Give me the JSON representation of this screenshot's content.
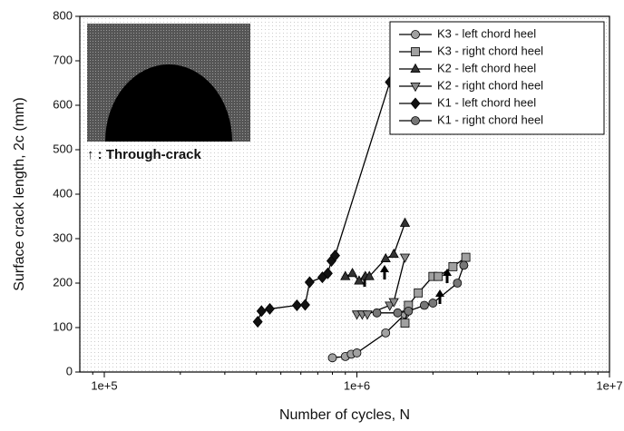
{
  "chart_data": {
    "type": "line",
    "xlabel": "Number of cycles, N",
    "ylabel": "Surface crack length, 2c (mm)",
    "annotation": "↑ : Through-crack",
    "xscale": "log",
    "xlim": [
      80000,
      10000000
    ],
    "ylim": [
      0,
      800
    ],
    "xticks": [
      {
        "value": 100000,
        "label": "1e+5"
      },
      {
        "value": 1000000,
        "label": "1e+6"
      },
      {
        "value": 10000000,
        "label": "1e+7"
      }
    ],
    "yticks": [
      0,
      100,
      200,
      300,
      400,
      500,
      600,
      700,
      800
    ],
    "legend": "upper right",
    "series": [
      {
        "name": "K3 - left chord heel",
        "color": "#a0a0a0",
        "marker": "circle",
        "x": [
          800000,
          900000,
          950000,
          1000000,
          1300000,
          1550000
        ],
        "values": [
          32,
          35,
          40,
          43,
          88,
          130
        ]
      },
      {
        "name": "K3 - right chord heel",
        "color": "#a0a0a0",
        "marker": "square",
        "x": [
          1550000,
          1600000,
          1750000,
          2000000,
          2100000,
          2400000,
          2700000
        ],
        "values": [
          110,
          150,
          178,
          215,
          215,
          237,
          258
        ]
      },
      {
        "name": "K2 - left chord heel",
        "color": "#333333",
        "marker": "triangle-up",
        "x": [
          900000,
          960000,
          1020000,
          1080000,
          1120000,
          1300000,
          1400000,
          1550000
        ],
        "values": [
          215,
          222,
          205,
          215,
          215,
          255,
          265,
          335
        ]
      },
      {
        "name": "K2 - right chord heel",
        "color": "#8a8a8a",
        "marker": "triangle-down",
        "x": [
          1000000,
          1050000,
          1100000,
          1350000,
          1400000,
          1550000
        ],
        "values": [
          130,
          130,
          130,
          150,
          158,
          258
        ]
      },
      {
        "name": "K1 - left chord heel",
        "color": "#111111",
        "marker": "diamond",
        "x": [
          405000,
          419000,
          452000,
          579000,
          624000,
          650000,
          730000,
          767000,
          793000,
          820000,
          1350000
        ],
        "values": [
          113,
          137,
          142,
          150,
          151,
          202,
          213,
          222,
          250,
          262,
          652
        ]
      },
      {
        "name": "K1 - right chord heel",
        "color": "#777777",
        "marker": "circle",
        "x": [
          1200000,
          1450000,
          1600000,
          1850000,
          2000000,
          2500000,
          2650000
        ],
        "values": [
          133,
          133,
          137,
          150,
          155,
          200,
          240
        ]
      }
    ]
  }
}
